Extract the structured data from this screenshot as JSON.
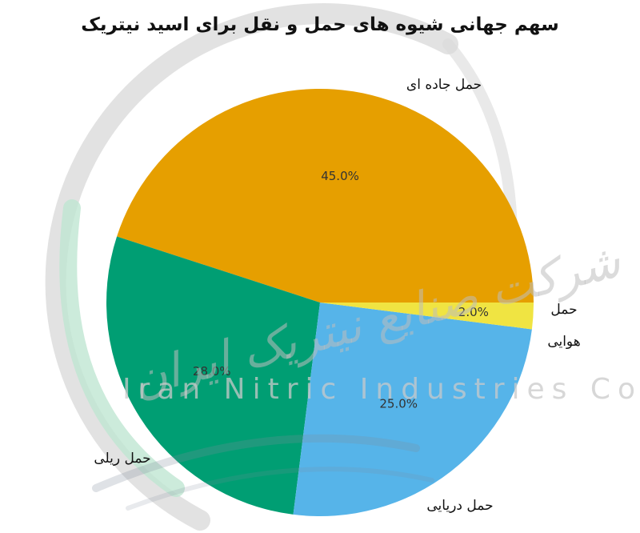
{
  "chart_data": {
    "type": "pie",
    "title": "سهم جهانی شیوه های حمل و نقل برای اسید نیتریک",
    "slices": [
      {
        "label": "حمل جاده ای",
        "value": 45.0,
        "display": "45.0%",
        "color": "#E69F00"
      },
      {
        "label": "حمل دریایی",
        "value": 28.0,
        "display": "28.0%",
        "color": "#009E73"
      },
      {
        "label": "حمل ریلی",
        "value": 25.0,
        "display": "25.0%",
        "color": "#56B4E9"
      },
      {
        "label": "حمل هوایی",
        "value": 2.0,
        "display": "2.0%",
        "color": "#F0E442"
      }
    ],
    "start_angle_deg": 0,
    "direction": "counterclockwise"
  },
  "watermark": {
    "persian_text": "شرکت صنایع نیتریک ایران",
    "latin_text": "Iran Nitric Industries Co"
  }
}
